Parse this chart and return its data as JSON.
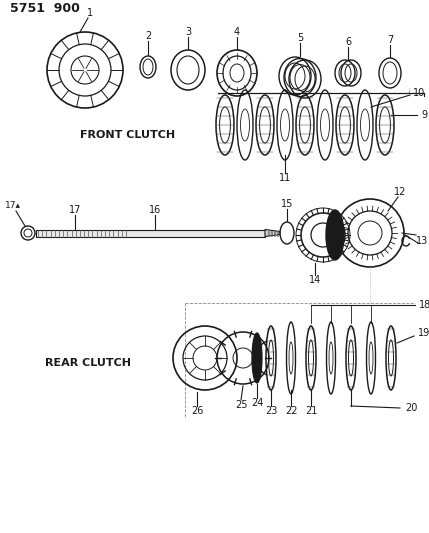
{
  "title": "5751  900",
  "background_color": "#ffffff",
  "line_color": "#1a1a1a",
  "text_color": "#1a1a1a",
  "front_clutch_label": "FRONT CLUTCH",
  "rear_clutch_label": "REAR CLUTCH",
  "fig_width": 4.29,
  "fig_height": 5.33,
  "dpi": 100
}
